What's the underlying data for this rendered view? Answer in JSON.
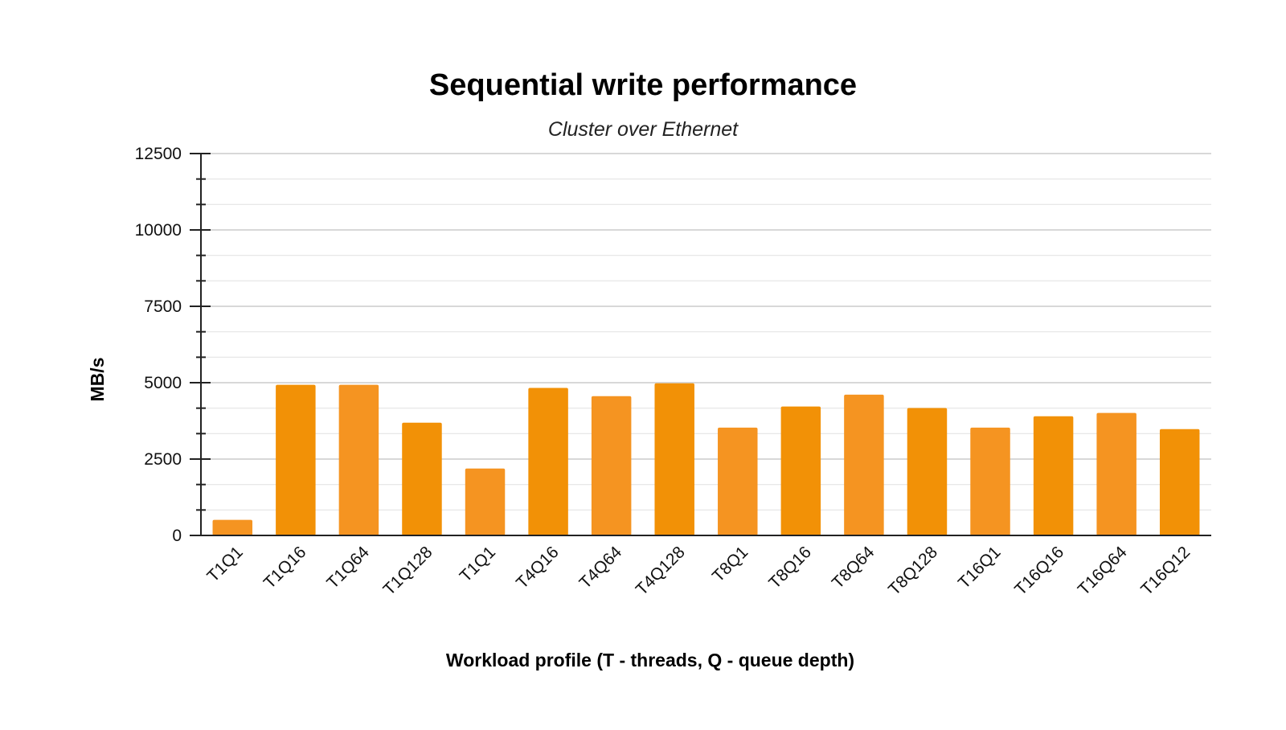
{
  "chart_data": {
    "type": "bar",
    "title": "Sequential write performance",
    "subtitle": "Cluster over Ethernet",
    "xlabel": "Workload profile (T - threads, Q - queue depth)",
    "ylabel": "MB/s",
    "ylim": [
      0,
      12500
    ],
    "yticks": [
      "0",
      "2500",
      "5000",
      "7500",
      "10000",
      "12500"
    ],
    "grid": true,
    "legend": "none",
    "categories": [
      "T1Q1",
      "T1Q16",
      "T1Q64",
      "T1Q128",
      "T1Q1",
      "T4Q16",
      "T4Q64",
      "T4Q128",
      "T8Q1",
      "T8Q16",
      "T8Q64",
      "T8Q128",
      "T16Q1",
      "T16Q16",
      "T16Q64",
      "T16Q12"
    ],
    "values": [
      510,
      4930,
      4930,
      3690,
      2190,
      4830,
      4560,
      4980,
      3530,
      4220,
      4610,
      4170,
      3530,
      3900,
      4010,
      3480
    ],
    "colors": {
      "bar": "#f59421",
      "bar_alt": "#f29106",
      "grid_major": "#cccccc",
      "grid_minor": "#e4e4e4",
      "axis": "#222222"
    }
  }
}
